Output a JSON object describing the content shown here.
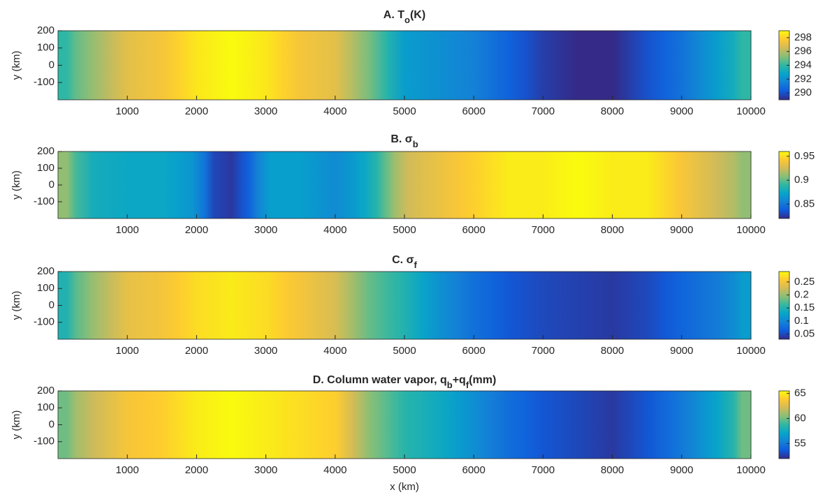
{
  "chart_data": [
    {
      "type": "heatmap",
      "title": [
        "A. T",
        "o",
        "(K)"
      ],
      "ylabel": "y (km)",
      "x": [
        0,
        500,
        1000,
        1500,
        2000,
        2500,
        3000,
        3500,
        4000,
        4500,
        5000,
        5500,
        6000,
        6500,
        7000,
        7500,
        8000,
        8500,
        9000,
        9500,
        10000
      ],
      "values": [
        294,
        295.5,
        297,
        297.5,
        298.5,
        299,
        298.5,
        297.5,
        297,
        295,
        292.5,
        292,
        291.5,
        290.5,
        289.5,
        289,
        289,
        290,
        291,
        292.5,
        294
      ],
      "xlim": [
        0,
        10000
      ],
      "ylim": [
        -200,
        200
      ],
      "xticks": [
        1000,
        2000,
        3000,
        4000,
        5000,
        6000,
        7000,
        8000,
        9000,
        10000
      ],
      "yticks": [
        -100,
        0,
        100,
        200
      ],
      "clim": [
        289,
        299
      ],
      "cticks": [
        290,
        292,
        294,
        296,
        298
      ],
      "colormap": [
        "#352a87",
        "#0f5cdd",
        "#1481d6",
        "#06a4ca",
        "#2eb7a4",
        "#87bf77",
        "#d1bb59",
        "#fec832",
        "#f9fb0e"
      ]
    },
    {
      "type": "heatmap",
      "title": [
        "B. σ",
        "b"
      ],
      "ylabel": "y (km)",
      "x": [
        0,
        500,
        1000,
        1500,
        2000,
        2250,
        2500,
        2750,
        3000,
        3500,
        4000,
        4500,
        4700,
        5000,
        5500,
        6000,
        6500,
        7000,
        7500,
        8000,
        8500,
        9000,
        9500,
        10000
      ],
      "values": [
        0.91,
        0.88,
        0.875,
        0.875,
        0.865,
        0.83,
        0.825,
        0.84,
        0.87,
        0.87,
        0.86,
        0.875,
        0.9,
        0.925,
        0.935,
        0.945,
        0.955,
        0.955,
        0.96,
        0.955,
        0.955,
        0.94,
        0.925,
        0.91
      ],
      "xlim": [
        0,
        10000
      ],
      "ylim": [
        -200,
        200
      ],
      "xticks": [
        1000,
        2000,
        3000,
        4000,
        5000,
        6000,
        7000,
        8000,
        9000,
        10000
      ],
      "yticks": [
        -100,
        0,
        100,
        200
      ],
      "clim": [
        0.82,
        0.96
      ],
      "cticks": [
        0.85,
        0.9,
        0.95
      ],
      "colormap": [
        "#352a87",
        "#0f5cdd",
        "#1481d6",
        "#06a4ca",
        "#2eb7a4",
        "#87bf77",
        "#d1bb59",
        "#fec832",
        "#f9fb0e"
      ]
    },
    {
      "type": "heatmap",
      "title": [
        "C. σ",
        "f"
      ],
      "ylabel": "y (km)",
      "x": [
        0,
        500,
        1000,
        1500,
        2000,
        2500,
        3000,
        3500,
        4000,
        4500,
        5000,
        5500,
        6000,
        6500,
        7000,
        7500,
        8000,
        8500,
        9000,
        9500,
        10000
      ],
      "values": [
        0.15,
        0.2,
        0.24,
        0.25,
        0.27,
        0.28,
        0.27,
        0.25,
        0.23,
        0.18,
        0.15,
        0.11,
        0.08,
        0.06,
        0.05,
        0.045,
        0.04,
        0.05,
        0.07,
        0.09,
        0.12
      ],
      "xlim": [
        0,
        10000
      ],
      "ylim": [
        -200,
        200
      ],
      "xticks": [
        1000,
        2000,
        3000,
        4000,
        5000,
        6000,
        7000,
        8000,
        9000,
        10000
      ],
      "yticks": [
        -100,
        0,
        100,
        200
      ],
      "clim": [
        0.03,
        0.29
      ],
      "cticks": [
        0.05,
        0.1,
        0.15,
        0.2,
        0.25
      ],
      "colormap": [
        "#352a87",
        "#0f5cdd",
        "#1481d6",
        "#06a4ca",
        "#2eb7a4",
        "#87bf77",
        "#d1bb59",
        "#fec832",
        "#f9fb0e"
      ]
    },
    {
      "type": "heatmap",
      "title": [
        "D. Column water vapor, q",
        "b",
        "+q",
        "f",
        "(mm)"
      ],
      "ylabel": "y (km)",
      "xlabel": "x (km)",
      "x": [
        0,
        500,
        1000,
        1500,
        2000,
        2500,
        3000,
        3500,
        4000,
        4500,
        5000,
        5500,
        6000,
        6500,
        7000,
        7500,
        8000,
        8500,
        9000,
        9500,
        10000
      ],
      "values": [
        60,
        62,
        63.5,
        64,
        65,
        65.5,
        65,
        64.5,
        64,
        60.5,
        58.5,
        57.5,
        56,
        54.5,
        53.5,
        53,
        52.5,
        53.5,
        55,
        57,
        60
      ],
      "xlim": [
        0,
        10000
      ],
      "ylim": [
        -200,
        200
      ],
      "xticks": [
        1000,
        2000,
        3000,
        4000,
        5000,
        6000,
        7000,
        8000,
        9000,
        10000
      ],
      "yticks": [
        -100,
        0,
        100,
        200
      ],
      "clim": [
        52,
        65.5
      ],
      "cticks": [
        55,
        60,
        65
      ],
      "colormap": [
        "#352a87",
        "#0f5cdd",
        "#1481d6",
        "#06a4ca",
        "#2eb7a4",
        "#87bf77",
        "#d1bb59",
        "#fec832",
        "#f9fb0e"
      ]
    }
  ]
}
